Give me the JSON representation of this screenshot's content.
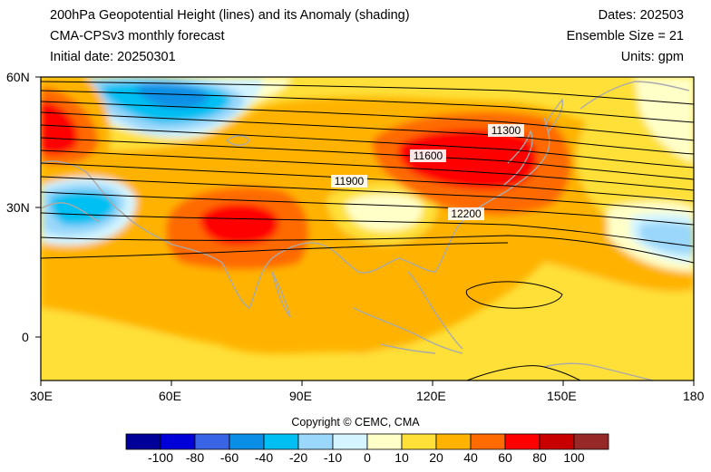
{
  "header": {
    "title": "200hPa Geopotential Height (lines) and its Anomaly (shading)",
    "model": "CMA-CPSv3 monthly forecast",
    "initial_date": "Initial date: 20250301",
    "dates": "Dates: 202503",
    "ensemble": "Ensemble Size = 21",
    "units": "Units: gpm"
  },
  "map": {
    "lon_labels": [
      "30E",
      "60E",
      "90E",
      "120E",
      "150E",
      "180"
    ],
    "lat_labels": [
      "60N",
      "30N",
      "0"
    ],
    "contour_labels": [
      "11300",
      "11600",
      "11900",
      "12200"
    ],
    "coastline_color": "#a9a9a9",
    "contour_color": "#000000"
  },
  "colorbar": {
    "labels": [
      "-100",
      "-80",
      "-60",
      "-40",
      "-20",
      "-10",
      "0",
      "10",
      "20",
      "40",
      "60",
      "80",
      "100"
    ],
    "colors": [
      "#000099",
      "#0000d9",
      "#3a64e6",
      "#0b8fe6",
      "#00bff2",
      "#9ad7fa",
      "#d4f5ff",
      "#ffffc8",
      "#ffe038",
      "#ffb300",
      "#ff6b00",
      "#ff0000",
      "#c80000",
      "#962828"
    ]
  },
  "copyright": "Copyright © CEMC, CMA"
}
